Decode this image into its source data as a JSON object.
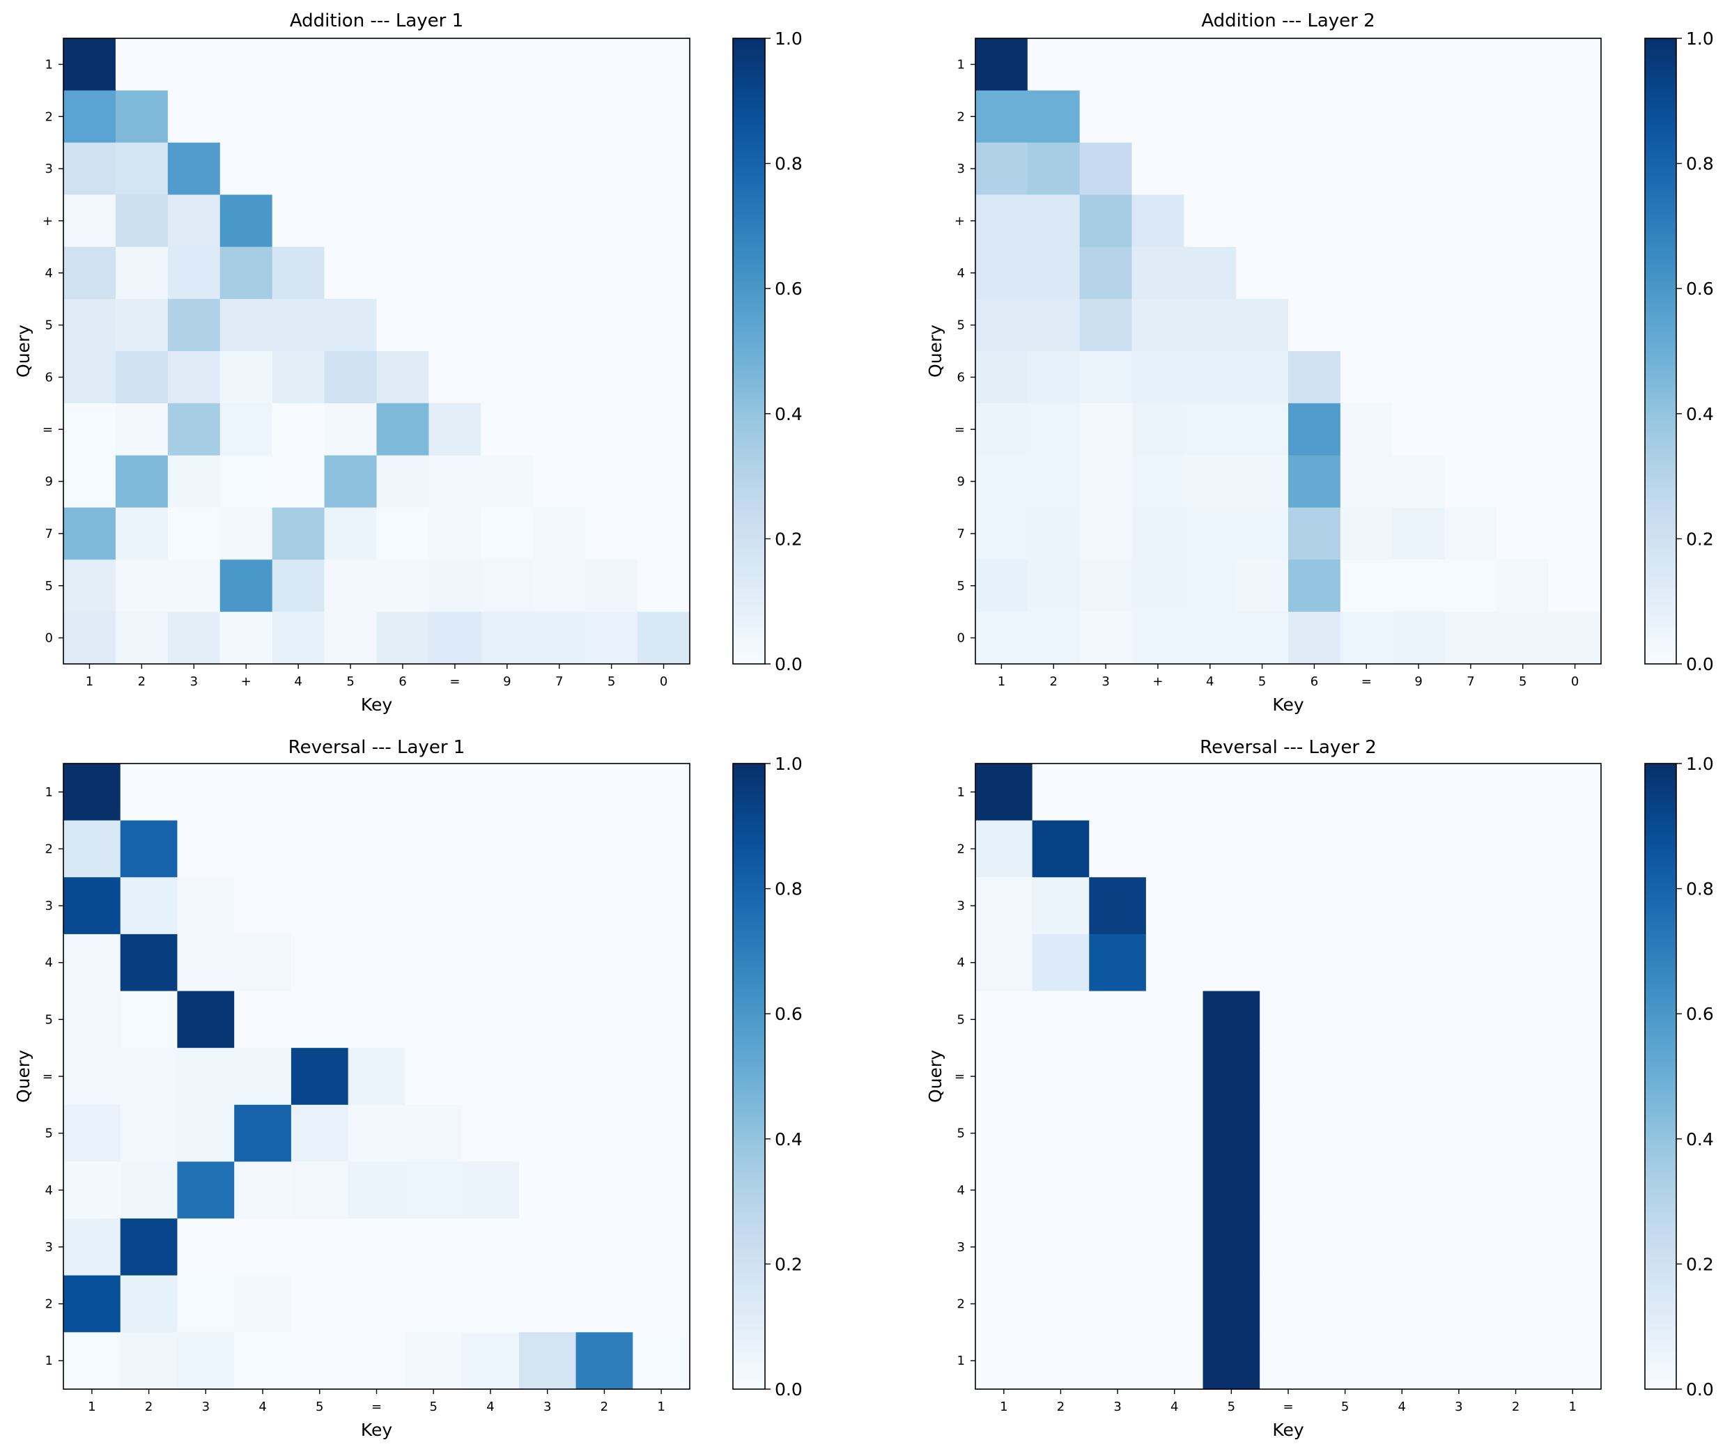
{
  "chart_data": [
    {
      "type": "heatmap",
      "title": "Addition --- Layer 1",
      "xlabel": "Key",
      "ylabel": "Query",
      "x_tick_labels": [
        "1",
        "2",
        "3",
        "+",
        "4",
        "5",
        "6",
        "=",
        "9",
        "7",
        "5",
        "0"
      ],
      "y_tick_labels": [
        "1",
        "2",
        "3",
        "+",
        "4",
        "5",
        "6",
        "=",
        "9",
        "7",
        "5",
        "0"
      ],
      "colormap": "Blues",
      "vlim": [
        0,
        1
      ],
      "colorbar_ticks": [
        "0.0",
        "0.2",
        "0.4",
        "0.6",
        "0.8",
        "1.0"
      ],
      "values": [
        [
          1.0,
          0,
          0,
          0,
          0,
          0,
          0,
          0,
          0,
          0,
          0,
          0
        ],
        [
          0.55,
          0.45,
          0,
          0,
          0,
          0,
          0,
          0,
          0,
          0,
          0,
          0
        ],
        [
          0.2,
          0.18,
          0.58,
          0,
          0,
          0,
          0,
          0,
          0,
          0,
          0,
          0
        ],
        [
          0.03,
          0.22,
          0.12,
          0.6,
          0,
          0,
          0,
          0,
          0,
          0,
          0,
          0
        ],
        [
          0.2,
          0.04,
          0.13,
          0.35,
          0.17,
          0,
          0,
          0,
          0,
          0,
          0,
          0
        ],
        [
          0.12,
          0.1,
          0.32,
          0.12,
          0.12,
          0.12,
          0,
          0,
          0,
          0,
          0,
          0
        ],
        [
          0.12,
          0.2,
          0.12,
          0.04,
          0.1,
          0.2,
          0.12,
          0,
          0,
          0,
          0,
          0
        ],
        [
          0.01,
          0.02,
          0.35,
          0.05,
          0.0,
          0.02,
          0.45,
          0.1,
          0,
          0,
          0,
          0
        ],
        [
          0.01,
          0.45,
          0.04,
          0.01,
          0.0,
          0.42,
          0.04,
          0.02,
          0.02,
          0,
          0,
          0
        ],
        [
          0.45,
          0.06,
          0.01,
          0.02,
          0.35,
          0.06,
          0.01,
          0.02,
          0.01,
          0.02,
          0,
          0
        ],
        [
          0.1,
          0.02,
          0.02,
          0.6,
          0.15,
          0.02,
          0.02,
          0.04,
          0.03,
          0.02,
          0.04,
          0
        ],
        [
          0.12,
          0.04,
          0.1,
          0.02,
          0.08,
          0.03,
          0.1,
          0.13,
          0.08,
          0.08,
          0.07,
          0.15
        ]
      ]
    },
    {
      "type": "heatmap",
      "title": "Addition --- Layer 2",
      "xlabel": "Key",
      "ylabel": "Query",
      "x_tick_labels": [
        "1",
        "2",
        "3",
        "+",
        "4",
        "5",
        "6",
        "=",
        "9",
        "7",
        "5",
        "0"
      ],
      "y_tick_labels": [
        "1",
        "2",
        "3",
        "+",
        "4",
        "5",
        "6",
        "=",
        "9",
        "7",
        "5",
        "0"
      ],
      "colormap": "Blues",
      "vlim": [
        0,
        1
      ],
      "colorbar_ticks": [
        "0.0",
        "0.2",
        "0.4",
        "0.6",
        "0.8",
        "1.0"
      ],
      "values": [
        [
          1.0,
          0,
          0,
          0,
          0,
          0,
          0,
          0,
          0,
          0,
          0,
          0
        ],
        [
          0.5,
          0.5,
          0,
          0,
          0,
          0,
          0,
          0,
          0,
          0,
          0,
          0
        ],
        [
          0.32,
          0.35,
          0.25,
          0,
          0,
          0,
          0,
          0,
          0,
          0,
          0,
          0
        ],
        [
          0.14,
          0.14,
          0.35,
          0.14,
          0,
          0,
          0,
          0,
          0,
          0,
          0,
          0
        ],
        [
          0.14,
          0.14,
          0.3,
          0.12,
          0.12,
          0,
          0,
          0,
          0,
          0,
          0,
          0
        ],
        [
          0.12,
          0.12,
          0.22,
          0.1,
          0.1,
          0.1,
          0,
          0,
          0,
          0,
          0,
          0
        ],
        [
          0.1,
          0.08,
          0.06,
          0.08,
          0.08,
          0.08,
          0.2,
          0,
          0,
          0,
          0,
          0
        ],
        [
          0.06,
          0.05,
          0.02,
          0.06,
          0.05,
          0.05,
          0.58,
          0.02,
          0,
          0,
          0,
          0
        ],
        [
          0.05,
          0.05,
          0.02,
          0.05,
          0.04,
          0.04,
          0.52,
          0.03,
          0.02,
          0,
          0,
          0
        ],
        [
          0.05,
          0.06,
          0.03,
          0.06,
          0.05,
          0.05,
          0.32,
          0.04,
          0.06,
          0.03,
          0,
          0
        ],
        [
          0.08,
          0.06,
          0.04,
          0.06,
          0.05,
          0.04,
          0.4,
          0.01,
          0.01,
          0.01,
          0.03,
          0
        ],
        [
          0.05,
          0.05,
          0.02,
          0.05,
          0.05,
          0.05,
          0.12,
          0.05,
          0.06,
          0.04,
          0.04,
          0.04
        ]
      ]
    },
    {
      "type": "heatmap",
      "title": "Reversal --- Layer 1",
      "xlabel": "Key",
      "ylabel": "Query",
      "x_tick_labels": [
        "1",
        "2",
        "3",
        "4",
        "5",
        "=",
        "5",
        "4",
        "3",
        "2",
        "1"
      ],
      "y_tick_labels": [
        "1",
        "2",
        "3",
        "4",
        "5",
        "=",
        "5",
        "4",
        "3",
        "2",
        "1"
      ],
      "colormap": "Blues",
      "vlim": [
        0,
        1
      ],
      "colorbar_ticks": [
        "0.0",
        "0.2",
        "0.4",
        "0.6",
        "0.8",
        "1.0"
      ],
      "values": [
        [
          1.0,
          0,
          0,
          0,
          0,
          0,
          0,
          0,
          0,
          0,
          0
        ],
        [
          0.15,
          0.8,
          0,
          0,
          0,
          0,
          0,
          0,
          0,
          0,
          0
        ],
        [
          0.9,
          0.08,
          0.02,
          0,
          0,
          0,
          0,
          0,
          0,
          0,
          0
        ],
        [
          0.02,
          0.95,
          0.02,
          0.03,
          0,
          0,
          0,
          0,
          0,
          0,
          0
        ],
        [
          0.03,
          0.01,
          0.98,
          0,
          0,
          0,
          0,
          0,
          0,
          0,
          0
        ],
        [
          0.03,
          0.03,
          0.04,
          0.04,
          0.92,
          0.06,
          0,
          0,
          0,
          0,
          0
        ],
        [
          0.07,
          0.03,
          0.04,
          0.8,
          0.07,
          0.02,
          0.02,
          0,
          0,
          0,
          0
        ],
        [
          0.02,
          0.04,
          0.75,
          0.02,
          0.03,
          0.06,
          0.05,
          0.06,
          0,
          0,
          0
        ],
        [
          0.08,
          0.92,
          0,
          0,
          0,
          0,
          0,
          0,
          0,
          0,
          0
        ],
        [
          0.88,
          0.08,
          0.01,
          0.02,
          0,
          0,
          0,
          0,
          0,
          0,
          0
        ],
        [
          0.01,
          0.04,
          0.05,
          0.01,
          0,
          0,
          0.02,
          0.05,
          0.18,
          0.7,
          0.01
        ]
      ]
    },
    {
      "type": "heatmap",
      "title": "Reversal --- Layer 2",
      "xlabel": "Key",
      "ylabel": "Query",
      "x_tick_labels": [
        "1",
        "2",
        "3",
        "4",
        "5",
        "=",
        "5",
        "4",
        "3",
        "2",
        "1"
      ],
      "y_tick_labels": [
        "1",
        "2",
        "3",
        "4",
        "5",
        "=",
        "5",
        "4",
        "3",
        "2",
        "1"
      ],
      "colormap": "Blues",
      "vlim": [
        0,
        1
      ],
      "colorbar_ticks": [
        "0.0",
        "0.2",
        "0.4",
        "0.6",
        "0.8",
        "1.0"
      ],
      "values": [
        [
          1.0,
          0,
          0,
          0,
          0,
          0,
          0,
          0,
          0,
          0,
          0
        ],
        [
          0.08,
          0.93,
          0,
          0,
          0,
          0,
          0,
          0,
          0,
          0,
          0
        ],
        [
          0.03,
          0.06,
          0.94,
          0,
          0,
          0,
          0,
          0,
          0,
          0,
          0
        ],
        [
          0.03,
          0.13,
          0.85,
          0,
          0,
          0,
          0,
          0,
          0,
          0,
          0
        ],
        [
          0,
          0,
          0,
          0,
          1.0,
          0,
          0,
          0,
          0,
          0,
          0
        ],
        [
          0,
          0,
          0,
          0,
          1.0,
          0,
          0,
          0,
          0,
          0,
          0
        ],
        [
          0,
          0,
          0,
          0,
          1.0,
          0,
          0,
          0,
          0,
          0,
          0
        ],
        [
          0,
          0,
          0,
          0,
          1.0,
          0,
          0,
          0,
          0,
          0,
          0
        ],
        [
          0,
          0,
          0,
          0,
          1.0,
          0,
          0,
          0,
          0,
          0,
          0
        ],
        [
          0,
          0,
          0,
          0,
          1.0,
          0,
          0,
          0,
          0,
          0,
          0
        ],
        [
          0,
          0,
          0,
          0,
          1.0,
          0,
          0,
          0,
          0,
          0,
          0
        ]
      ]
    }
  ]
}
